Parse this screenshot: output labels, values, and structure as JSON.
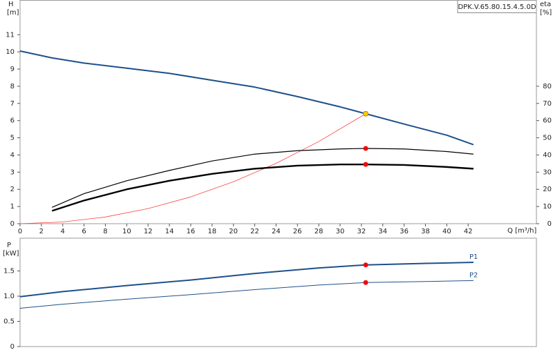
{
  "chart_data": [
    {
      "type": "line",
      "model": "DPK.V.65.80.15.4.5.0D",
      "y_label": "H",
      "y_unit": "[m]",
      "y2_label": "eta",
      "y2_unit": "[%]",
      "x_label": "Q [m³/h]",
      "xlim": [
        0,
        48.4
      ],
      "xticks": [
        0,
        2,
        4,
        6,
        8,
        10,
        12,
        14,
        16,
        18,
        20,
        22,
        24,
        26,
        28,
        30,
        32,
        34,
        36,
        38,
        40,
        42
      ],
      "ylim": [
        0,
        13
      ],
      "yticks": [
        0,
        1,
        2,
        3,
        4,
        5,
        6,
        7,
        8,
        9,
        10,
        11
      ],
      "y2lim": [
        0,
        130
      ],
      "y2ticks": [
        0,
        10,
        20,
        30,
        40,
        50,
        60,
        70,
        80
      ],
      "series": [
        {
          "style": "line",
          "color": "#ff4040",
          "width": 0.8,
          "x": [
            0,
            4,
            8,
            12,
            16,
            20,
            24,
            28,
            32.4
          ],
          "values": [
            0,
            0.1,
            0.39,
            0.88,
            1.56,
            2.44,
            3.51,
            4.78,
            6.4
          ]
        },
        {
          "style": "line",
          "color": "#1d4f8a",
          "width": 2,
          "x": [
            0,
            3,
            6,
            10,
            14,
            18,
            22,
            26,
            30,
            32.4,
            36,
            40,
            42.5
          ],
          "values": [
            10.05,
            9.65,
            9.35,
            9.05,
            8.75,
            8.35,
            7.95,
            7.4,
            6.8,
            6.4,
            5.8,
            5.15,
            4.6
          ]
        },
        {
          "style": "line",
          "axis": "y2",
          "color": "#000000",
          "width": 1.2,
          "x": [
            3,
            6,
            10,
            14,
            18,
            22,
            26,
            30,
            32.4,
            36,
            40,
            42.5
          ],
          "values": [
            9.5,
            17.5,
            25,
            31,
            36.5,
            40.5,
            42.5,
            43.5,
            43.8,
            43.5,
            42,
            40.5
          ]
        },
        {
          "style": "line",
          "axis": "y2",
          "color": "#000000",
          "width": 2.4,
          "x": [
            3,
            6,
            10,
            14,
            18,
            22,
            26,
            30,
            32.4,
            36,
            40,
            42.5
          ],
          "values": [
            7.5,
            13.5,
            20,
            25,
            29,
            32,
            33.8,
            34.5,
            34.5,
            34.2,
            33,
            32
          ]
        },
        {
          "style": "marker",
          "color": "#f7d000",
          "x": [
            32.4
          ],
          "values": [
            6.4
          ]
        },
        {
          "style": "marker",
          "axis": "y2",
          "color": "#ff0000",
          "x": [
            32.4
          ],
          "values": [
            43.8
          ]
        },
        {
          "style": "marker",
          "axis": "y2",
          "color": "#ff0000",
          "x": [
            32.4
          ],
          "values": [
            34.5
          ]
        }
      ]
    },
    {
      "type": "line",
      "y_label": "P",
      "y_unit": "[kW]",
      "xlim": [
        0,
        48.4
      ],
      "ylim": [
        0,
        2.15
      ],
      "yticks": [
        0,
        0.5,
        {
          "value": 1,
          "label": "1.0"
        },
        1.5
      ],
      "series": [
        {
          "name": "P1",
          "style": "line",
          "color": "#1d4f8a",
          "width": 2,
          "x": [
            0,
            4,
            10,
            16,
            22,
            28,
            32.4,
            38,
            42.5
          ],
          "values": [
            0.99,
            1.09,
            1.21,
            1.32,
            1.45,
            1.56,
            1.62,
            1.65,
            1.67
          ]
        },
        {
          "name": "P2",
          "style": "line",
          "color": "#1d4f8a",
          "width": 1,
          "x": [
            0,
            4,
            10,
            16,
            22,
            28,
            32.4,
            38,
            42.5
          ],
          "values": [
            0.76,
            0.84,
            0.94,
            1.03,
            1.13,
            1.22,
            1.27,
            1.29,
            1.31
          ]
        },
        {
          "style": "marker",
          "color": "#ff0000",
          "x": [
            32.4
          ],
          "values": [
            1.62
          ]
        },
        {
          "style": "marker",
          "color": "#ff0000",
          "x": [
            32.4
          ],
          "values": [
            1.27
          ]
        }
      ]
    }
  ]
}
